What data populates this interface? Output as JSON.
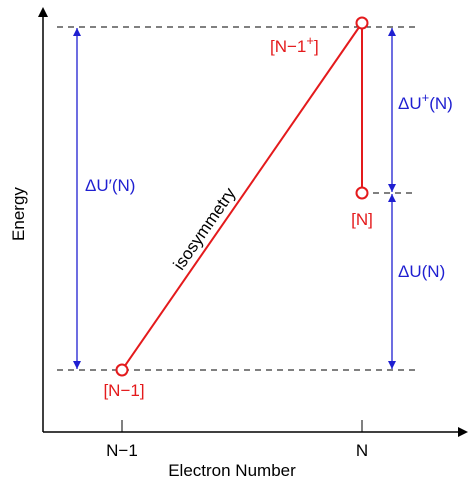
{
  "diagram": {
    "axes": {
      "ylabel": "Energy",
      "xlabel": "Electron Number",
      "xticks": [
        "N−1",
        "N"
      ]
    },
    "points": {
      "n_minus_1": "[N−1]",
      "n_minus_1_plus": "[N−1",
      "n_minus_1_plus_sup": "+",
      "n_minus_1_plus_close": "]",
      "n": "[N]"
    },
    "line_label": "isosymmetry",
    "arrows": {
      "delta_u_prime": "ΔU′(N)",
      "delta_u_plus": "ΔU",
      "delta_u_plus_sup": "+",
      "delta_u_plus_tail": "(N)",
      "delta_u": "ΔU(N)"
    },
    "colors": {
      "curve": "#e41a1c",
      "arrow": "#1f1fd1",
      "axis": "#000000"
    }
  }
}
